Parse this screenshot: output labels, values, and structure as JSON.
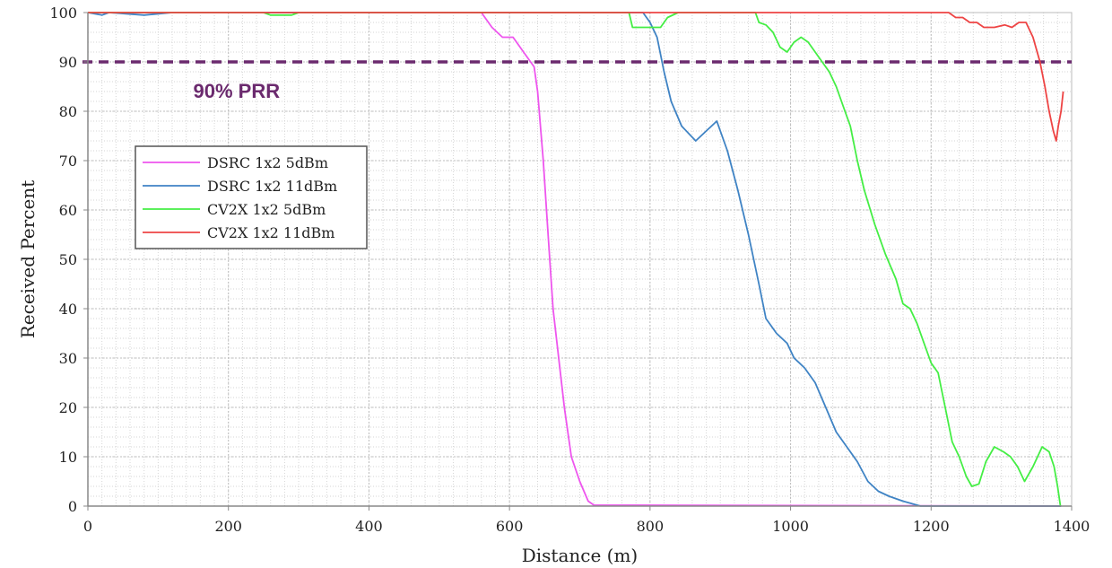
{
  "chart_data": {
    "type": "line",
    "title": "",
    "xlabel": "Distance (m)",
    "ylabel": "Received Percent",
    "xlim": [
      0,
      1400
    ],
    "ylim": [
      0,
      100
    ],
    "x_ticks": [
      0,
      200,
      400,
      600,
      800,
      1000,
      1200,
      1400
    ],
    "y_ticks": [
      0,
      10,
      20,
      30,
      40,
      50,
      60,
      70,
      80,
      90,
      100
    ],
    "grid": true,
    "legend_position": "upper-left",
    "reference_line": {
      "y": 90,
      "label": "90% PRR",
      "color": "#6b2a6e",
      "style": "dashed"
    },
    "series": [
      {
        "name": "DSRC 1x2 5dBm",
        "color": "#ee55ee",
        "points": [
          [
            0,
            100
          ],
          [
            560,
            100
          ],
          [
            575,
            97
          ],
          [
            590,
            95
          ],
          [
            605,
            95
          ],
          [
            620,
            92
          ],
          [
            635,
            89
          ],
          [
            640,
            84
          ],
          [
            648,
            70
          ],
          [
            655,
            55
          ],
          [
            662,
            40
          ],
          [
            670,
            30
          ],
          [
            678,
            20
          ],
          [
            688,
            10
          ],
          [
            700,
            5
          ],
          [
            712,
            1
          ],
          [
            720,
            0.2
          ],
          [
            1385,
            0
          ]
        ]
      },
      {
        "name": "DSRC 1x2 11dBm",
        "color": "#3f83c4",
        "points": [
          [
            0,
            100
          ],
          [
            20,
            99.5
          ],
          [
            30,
            100
          ],
          [
            80,
            99.5
          ],
          [
            120,
            100
          ],
          [
            790,
            100
          ],
          [
            800,
            98
          ],
          [
            810,
            95
          ],
          [
            820,
            88
          ],
          [
            830,
            82
          ],
          [
            845,
            77
          ],
          [
            865,
            74
          ],
          [
            880,
            76
          ],
          [
            895,
            78
          ],
          [
            910,
            72
          ],
          [
            925,
            64
          ],
          [
            940,
            55
          ],
          [
            955,
            45
          ],
          [
            965,
            38
          ],
          [
            980,
            35
          ],
          [
            995,
            33
          ],
          [
            1005,
            30
          ],
          [
            1020,
            28
          ],
          [
            1035,
            25
          ],
          [
            1050,
            20
          ],
          [
            1065,
            15
          ],
          [
            1080,
            12
          ],
          [
            1095,
            9
          ],
          [
            1110,
            5
          ],
          [
            1125,
            3
          ],
          [
            1140,
            2
          ],
          [
            1160,
            1
          ],
          [
            1185,
            0
          ],
          [
            1385,
            0
          ]
        ]
      },
      {
        "name": "CV2X 1x2 5dBm",
        "color": "#44ee44",
        "points": [
          [
            0,
            100
          ],
          [
            250,
            100
          ],
          [
            260,
            99.5
          ],
          [
            290,
            99.5
          ],
          [
            300,
            100
          ],
          [
            770,
            100
          ],
          [
            775,
            97
          ],
          [
            800,
            97
          ],
          [
            815,
            97
          ],
          [
            825,
            99
          ],
          [
            840,
            100
          ],
          [
            950,
            100
          ],
          [
            955,
            98
          ],
          [
            965,
            97.5
          ],
          [
            975,
            96
          ],
          [
            985,
            93
          ],
          [
            995,
            92
          ],
          [
            1005,
            94
          ],
          [
            1015,
            95
          ],
          [
            1025,
            94
          ],
          [
            1035,
            92
          ],
          [
            1045,
            90
          ],
          [
            1055,
            88
          ],
          [
            1065,
            85
          ],
          [
            1075,
            81
          ],
          [
            1085,
            77
          ],
          [
            1095,
            70
          ],
          [
            1105,
            64
          ],
          [
            1120,
            57
          ],
          [
            1135,
            51
          ],
          [
            1150,
            46
          ],
          [
            1160,
            41
          ],
          [
            1170,
            40
          ],
          [
            1180,
            37
          ],
          [
            1190,
            33
          ],
          [
            1200,
            29
          ],
          [
            1210,
            27
          ],
          [
            1220,
            20
          ],
          [
            1230,
            13
          ],
          [
            1240,
            10
          ],
          [
            1250,
            6
          ],
          [
            1258,
            4
          ],
          [
            1268,
            4.5
          ],
          [
            1278,
            9
          ],
          [
            1290,
            12
          ],
          [
            1303,
            11
          ],
          [
            1313,
            10
          ],
          [
            1323,
            8
          ],
          [
            1333,
            5
          ],
          [
            1345,
            8
          ],
          [
            1358,
            12
          ],
          [
            1368,
            11
          ],
          [
            1375,
            8
          ],
          [
            1380,
            4
          ],
          [
            1384,
            0
          ]
        ]
      },
      {
        "name": "CV2X 1x2 11dBm",
        "color": "#ee4444",
        "points": [
          [
            0,
            100
          ],
          [
            1225,
            100
          ],
          [
            1235,
            99
          ],
          [
            1245,
            99
          ],
          [
            1255,
            98
          ],
          [
            1265,
            98
          ],
          [
            1275,
            97
          ],
          [
            1290,
            97
          ],
          [
            1305,
            97.5
          ],
          [
            1315,
            97
          ],
          [
            1325,
            98
          ],
          [
            1335,
            98
          ],
          [
            1345,
            95
          ],
          [
            1355,
            90
          ],
          [
            1362,
            85
          ],
          [
            1368,
            80
          ],
          [
            1374,
            76
          ],
          [
            1378,
            74
          ],
          [
            1381,
            77
          ],
          [
            1385,
            80
          ],
          [
            1388,
            84
          ]
        ]
      }
    ]
  }
}
